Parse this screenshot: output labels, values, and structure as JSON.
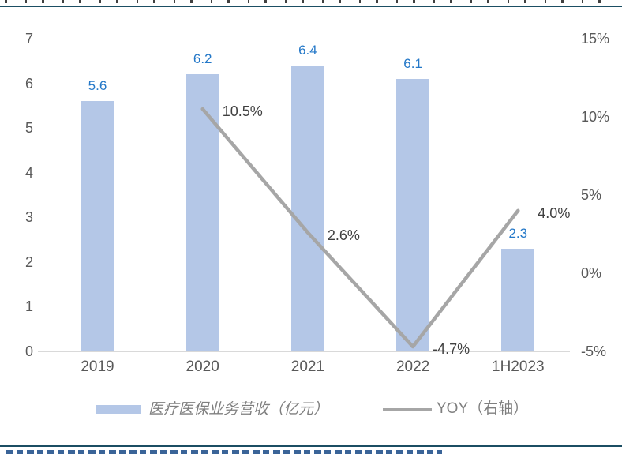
{
  "page": {
    "header_rule_color": "#1B4E63",
    "footer_rule_color": "#1B4E63",
    "clipped_source_text_color": "#24538C"
  },
  "chart_data": {
    "type": "bar",
    "combo": "bar+line",
    "categories": [
      "2019",
      "2020",
      "2021",
      "2022",
      "1H2023"
    ],
    "series": [
      {
        "name": "医疗医保业务营收（亿元）",
        "type": "bar",
        "axis": "left",
        "values": [
          5.6,
          6.2,
          6.4,
          6.1,
          2.3
        ],
        "value_labels": [
          "5.6",
          "6.2",
          "6.4",
          "6.1",
          "2.3"
        ],
        "color": "#B4C7E7",
        "label_color": "#2478C8"
      },
      {
        "name": "YOY（右轴）",
        "type": "line",
        "axis": "right",
        "values": [
          null,
          10.5,
          2.6,
          -4.7,
          4.0
        ],
        "value_labels": [
          "",
          "10.5%",
          "2.6%",
          "-4.7%",
          "4.0%"
        ],
        "color": "#A6A6A6",
        "label_color": "#404040"
      }
    ],
    "left_axis": {
      "min": 0,
      "max": 7,
      "tick_values": [
        7,
        6,
        5,
        4,
        3,
        2,
        1,
        0
      ],
      "tick_labels": [
        "7",
        "6",
        "5",
        "4",
        "3",
        "2",
        "1",
        "0"
      ]
    },
    "right_axis": {
      "min": -5,
      "max": 15,
      "tick_values": [
        15,
        10,
        5,
        0,
        -5
      ],
      "tick_labels": [
        "15%",
        "10%",
        "5%",
        "0%",
        "-5%"
      ]
    },
    "legend": [
      {
        "label": "医疗医保业务营收（亿元）",
        "swatch": "bar",
        "color": "#B4C7E7"
      },
      {
        "label": "YOY（右轴）",
        "swatch": "line",
        "color": "#A6A6A6"
      }
    ],
    "grid": false,
    "legend_position": "bottom"
  }
}
